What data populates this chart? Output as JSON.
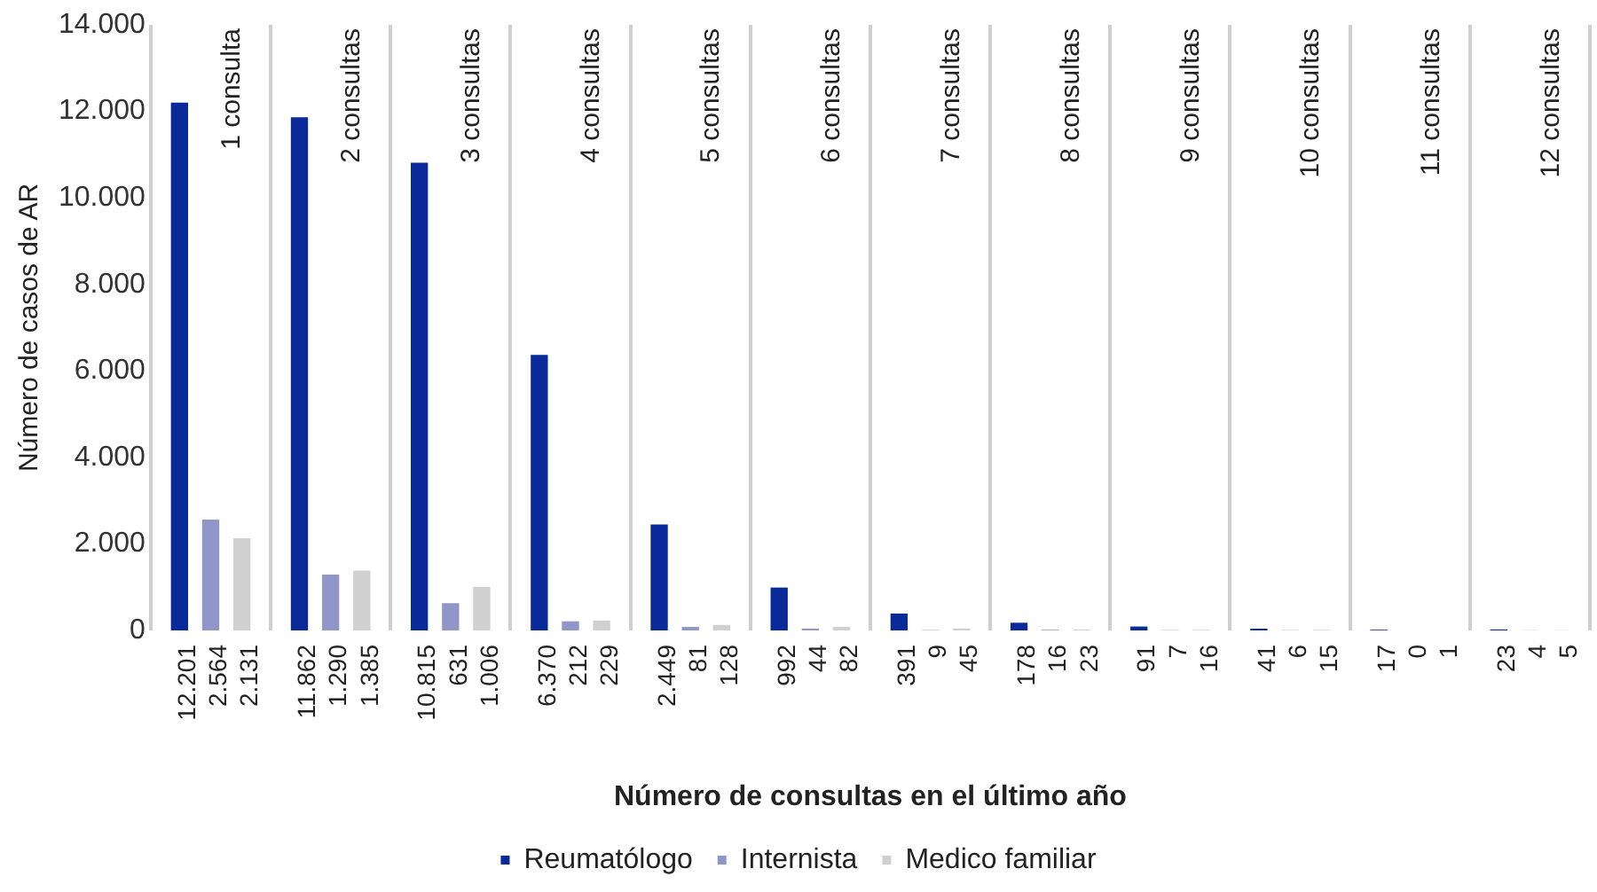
{
  "chart_data": {
    "type": "bar",
    "xlabel": "Número de consultas en el último año",
    "ylabel": "Número de casos de AR",
    "categories": [
      "1 consulta",
      "2 consultas",
      "3 consultas",
      "4 consultas",
      "5 consultas",
      "6 consultas",
      "7 consultas",
      "8 consultas",
      "9 consultas",
      "10 consultas",
      "11 consultas",
      "12 consultas"
    ],
    "series": [
      {
        "name": "Reumatólogo",
        "color": "#0a2a9a",
        "values": [
          12201,
          11862,
          10815,
          6370,
          2449,
          992,
          391,
          178,
          91,
          41,
          17,
          23
        ],
        "value_labels": [
          "12.201",
          "11.862",
          "10.815",
          "6.370",
          "2.449",
          "992",
          "391",
          "178",
          "91",
          "41",
          "17",
          "23"
        ]
      },
      {
        "name": "Internista",
        "color": "#9096c8",
        "values": [
          2564,
          1290,
          631,
          212,
          81,
          44,
          9,
          16,
          7,
          6,
          0,
          4
        ],
        "value_labels": [
          "2.564",
          "1.290",
          "631",
          "212",
          "81",
          "44",
          "9",
          "16",
          "7",
          "6",
          "0",
          "4"
        ]
      },
      {
        "name": "Medico familiar",
        "color": "#d0d0d0",
        "values": [
          2131,
          1385,
          1006,
          229,
          128,
          82,
          45,
          23,
          16,
          15,
          1,
          5
        ],
        "value_labels": [
          "2.131",
          "1.385",
          "1.006",
          "229",
          "128",
          "82",
          "45",
          "23",
          "16",
          "15",
          "1",
          "5"
        ]
      }
    ],
    "ylim": [
      0,
      14000
    ],
    "yticks": [
      {
        "value": 0,
        "label": "0"
      },
      {
        "value": 2000,
        "label": "2.000"
      },
      {
        "value": 4000,
        "label": "4.000"
      },
      {
        "value": 6000,
        "label": "6.000"
      },
      {
        "value": 8000,
        "label": "8.000"
      },
      {
        "value": 10000,
        "label": "10.000"
      },
      {
        "value": 12000,
        "label": "12.000"
      },
      {
        "value": 14000,
        "label": "14.000"
      }
    ],
    "grid": "x",
    "legend": "bottom"
  }
}
